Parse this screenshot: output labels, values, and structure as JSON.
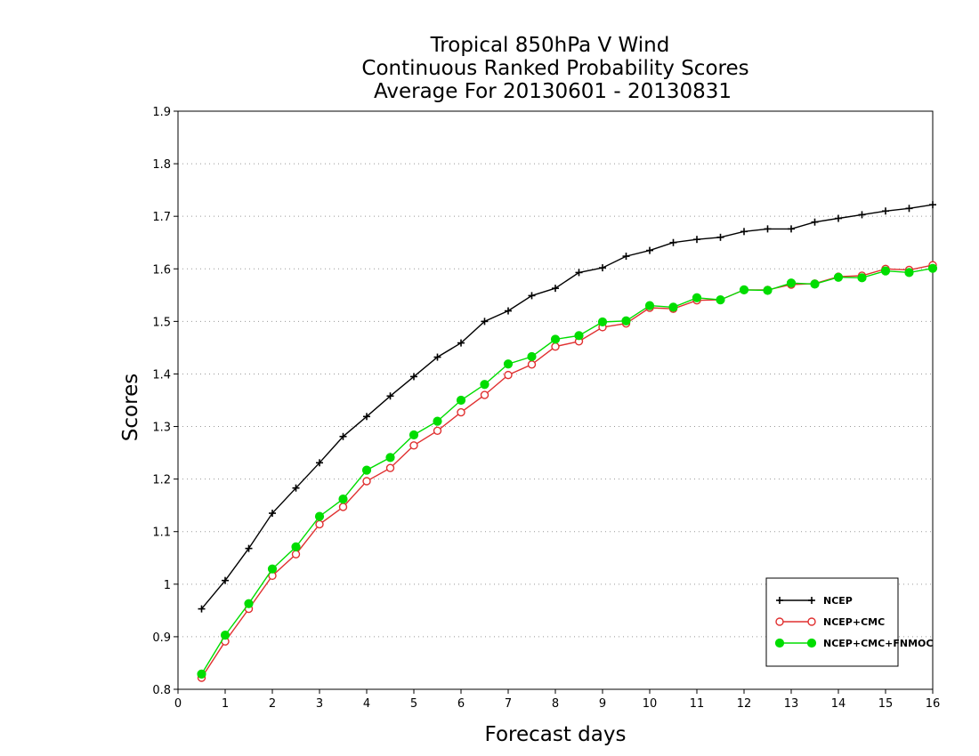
{
  "chart_data": {
    "type": "line",
    "title": [
      "Tropical 850hPa V Wind",
      "Continuous Ranked Probability Scores",
      "Average For 20130601 - 20130831"
    ],
    "xlabel": "Forecast days",
    "ylabel": "Scores",
    "xlim": [
      0,
      16
    ],
    "ylim": [
      0.8,
      1.9
    ],
    "xticks": [
      "0",
      "1",
      "2",
      "3",
      "4",
      "5",
      "6",
      "7",
      "8",
      "9",
      "10",
      "11",
      "12",
      "13",
      "14",
      "15",
      "16"
    ],
    "yticks": [
      "0.8",
      "0.9",
      "1",
      "1.1",
      "1.2",
      "1.3",
      "1.4",
      "1.5",
      "1.6",
      "1.7",
      "1.8",
      "1.9"
    ],
    "grid": "horizontal-dotted",
    "legend_position": "bottom-right",
    "x": [
      0.5,
      1,
      1.5,
      2,
      2.5,
      3,
      3.5,
      4,
      4.5,
      5,
      5.5,
      6,
      6.5,
      7,
      7.5,
      8,
      8.5,
      9,
      9.5,
      10,
      10.5,
      11,
      11.5,
      12,
      12.5,
      13,
      13.5,
      14,
      14.5,
      15,
      15.5,
      16
    ],
    "series": [
      {
        "name": "NCEP",
        "color": "#000000",
        "marker": "plus",
        "values": [
          0.953,
          1.007,
          1.068,
          1.135,
          1.183,
          1.231,
          1.281,
          1.319,
          1.358,
          1.395,
          1.432,
          1.459,
          1.5,
          1.52,
          1.549,
          1.563,
          1.593,
          1.602,
          1.624,
          1.635,
          1.65,
          1.656,
          1.66,
          1.671,
          1.676,
          1.676,
          1.689,
          1.696,
          1.703,
          1.71,
          1.715,
          1.722
        ]
      },
      {
        "name": "NCEP+CMC",
        "color": "#e03030",
        "marker": "open-circle",
        "values": [
          0.822,
          0.891,
          0.953,
          1.016,
          1.057,
          1.114,
          1.147,
          1.196,
          1.221,
          1.264,
          1.292,
          1.327,
          1.36,
          1.398,
          1.418,
          1.452,
          1.462,
          1.489,
          1.496,
          1.526,
          1.524,
          1.54,
          1.541,
          1.56,
          1.56,
          1.57,
          1.572,
          1.585,
          1.587,
          1.6,
          1.598,
          1.607
        ]
      },
      {
        "name": "NCEP+CMC+FNMOC",
        "color": "#00dd00",
        "marker": "filled-circle",
        "values": [
          0.829,
          0.903,
          0.963,
          1.029,
          1.071,
          1.129,
          1.162,
          1.217,
          1.241,
          1.284,
          1.31,
          1.35,
          1.38,
          1.419,
          1.433,
          1.466,
          1.473,
          1.499,
          1.501,
          1.53,
          1.527,
          1.545,
          1.541,
          1.56,
          1.559,
          1.573,
          1.571,
          1.584,
          1.583,
          1.596,
          1.593,
          1.601
        ]
      }
    ]
  }
}
